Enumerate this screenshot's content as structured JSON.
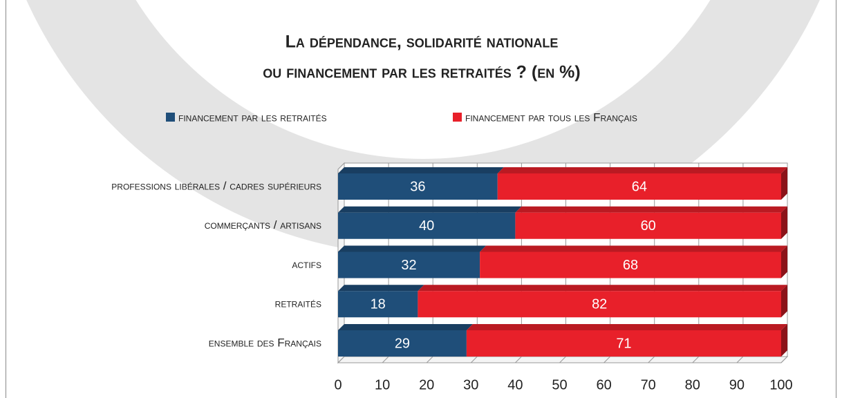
{
  "chart_data": {
    "type": "stacked-bar-horizontal",
    "title": [
      "La dépendance, solidarité nationale",
      "ou financement par les retraités ? (en %)"
    ],
    "categories": [
      "professions libérales / cadres supérieurs",
      "commerçants / artisans",
      "actifs",
      "retraités",
      "ensemble des Français"
    ],
    "series": [
      {
        "name": "financement par les retraités",
        "color": "#1f4e79",
        "values": [
          36,
          40,
          32,
          18,
          29
        ]
      },
      {
        "name": "financement par tous les Français",
        "color": "#e8202a",
        "values": [
          64,
          60,
          68,
          82,
          71
        ]
      }
    ],
    "xlim": [
      0,
      100
    ],
    "xticks": [
      0,
      10,
      20,
      30,
      40,
      50,
      60,
      70,
      80,
      90,
      100
    ],
    "grid": true
  }
}
